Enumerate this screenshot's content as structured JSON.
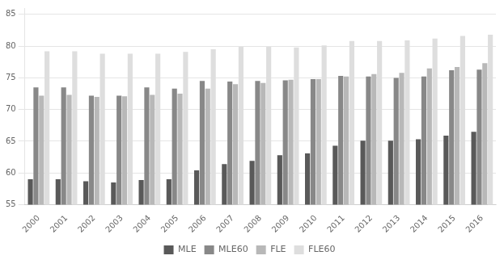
{
  "chart_data": {
    "type": "bar",
    "categories": [
      "2000",
      "2001",
      "2002",
      "2003",
      "2004",
      "2005",
      "2006",
      "2007",
      "2008",
      "2009",
      "2010",
      "2011",
      "2012",
      "2013",
      "2014",
      "2015",
      "2016"
    ],
    "series": [
      {
        "name": "MLE",
        "color": "#595959",
        "values": [
          59.0,
          59.0,
          58.7,
          58.5,
          58.9,
          59.0,
          60.4,
          61.4,
          61.9,
          62.8,
          63.1,
          64.3,
          65.1,
          65.1,
          65.3,
          65.9,
          66.5
        ]
      },
      {
        "name": "MLE60",
        "color": "#888888",
        "values": [
          73.5,
          73.5,
          72.2,
          72.2,
          73.5,
          73.3,
          74.5,
          74.4,
          74.5,
          74.6,
          74.8,
          75.3,
          75.2,
          75.0,
          75.2,
          76.2,
          76.3
        ]
      },
      {
        "name": "FLE",
        "color": "#b8b8b8",
        "values": [
          72.2,
          72.3,
          72.0,
          72.1,
          72.3,
          72.5,
          73.3,
          74.0,
          74.2,
          74.7,
          74.8,
          75.2,
          75.6,
          75.8,
          76.5,
          76.7,
          77.3
        ]
      },
      {
        "name": "FLE60",
        "color": "#dedede",
        "values": [
          79.2,
          79.2,
          78.8,
          78.8,
          78.8,
          79.1,
          79.5,
          79.9,
          79.9,
          79.8,
          80.1,
          80.8,
          80.8,
          80.9,
          81.2,
          81.6,
          81.8
        ]
      }
    ],
    "ylim": [
      55,
      86
    ],
    "yticks": [
      55,
      60,
      65,
      70,
      75,
      80,
      85
    ],
    "grid": true,
    "legend": "bottom"
  }
}
